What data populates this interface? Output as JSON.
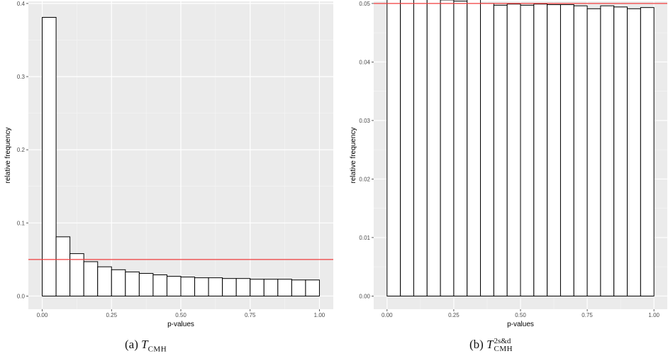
{
  "chart_data": [
    {
      "type": "bar",
      "caption": {
        "prefix": "(a)",
        "symbol": "T",
        "subscript": "CMH",
        "superscript": ""
      },
      "xlabel": "p-values",
      "ylabel": "relative frequency",
      "xlim": [
        0.0,
        1.0
      ],
      "ylim": [
        0.0,
        0.4
      ],
      "xticks": [
        0.0,
        0.25,
        0.5,
        0.75,
        1.0
      ],
      "xtick_labels": [
        "0.00",
        "0.25",
        "0.50",
        "0.75",
        "1.00"
      ],
      "yticks": [
        0.0,
        0.1,
        0.2,
        0.3,
        0.4
      ],
      "ytick_labels": [
        "0.0",
        "0.1",
        "0.2",
        "0.3",
        "0.4"
      ],
      "bin_edges": [
        0.0,
        0.05,
        0.1,
        0.15,
        0.2,
        0.25,
        0.3,
        0.35,
        0.4,
        0.45,
        0.5,
        0.55,
        0.6,
        0.65,
        0.7,
        0.75,
        0.8,
        0.85,
        0.9,
        0.95,
        1.0
      ],
      "values": [
        0.381,
        0.081,
        0.058,
        0.047,
        0.04,
        0.036,
        0.033,
        0.031,
        0.029,
        0.027,
        0.026,
        0.025,
        0.025,
        0.024,
        0.024,
        0.023,
        0.023,
        0.023,
        0.022,
        0.022
      ],
      "reference_line": {
        "y": 0.05,
        "color": "#f03c3c"
      },
      "grid": true,
      "panel_background": "#ebebeb",
      "bar_fill": "#ffffff",
      "bar_stroke": "#000000"
    },
    {
      "type": "bar",
      "caption": {
        "prefix": "(b)",
        "symbol": "T",
        "subscript": "CMH",
        "superscript": "2s&d"
      },
      "xlabel": "p-values",
      "ylabel": "relative frequency",
      "xlim": [
        0.0,
        1.0
      ],
      "ylim": [
        0.0,
        0.05
      ],
      "xticks": [
        0.0,
        0.25,
        0.5,
        0.75,
        1.0
      ],
      "xtick_labels": [
        "0.00",
        "0.25",
        "0.50",
        "0.75",
        "1.00"
      ],
      "yticks": [
        0.0,
        0.01,
        0.02,
        0.03,
        0.04,
        0.05
      ],
      "ytick_labels": [
        "0.00",
        "0.01",
        "0.02",
        "0.03",
        "0.04",
        "0.05"
      ],
      "bin_edges": [
        0.0,
        0.05,
        0.1,
        0.15,
        0.2,
        0.25,
        0.3,
        0.35,
        0.4,
        0.45,
        0.5,
        0.55,
        0.6,
        0.65,
        0.7,
        0.75,
        0.8,
        0.85,
        0.9,
        0.95,
        1.0
      ],
      "values": [
        0.0508,
        0.0507,
        0.0509,
        0.0509,
        0.0506,
        0.0504,
        0.0507,
        0.05,
        0.0497,
        0.0499,
        0.0497,
        0.0499,
        0.0498,
        0.0498,
        0.0496,
        0.0491,
        0.0496,
        0.0494,
        0.0491,
        0.0493
      ],
      "reference_line": {
        "y": 0.05,
        "color": "#f03c3c"
      },
      "grid": true,
      "panel_background": "#ebebeb",
      "bar_fill": "#ffffff",
      "bar_stroke": "#000000"
    }
  ]
}
